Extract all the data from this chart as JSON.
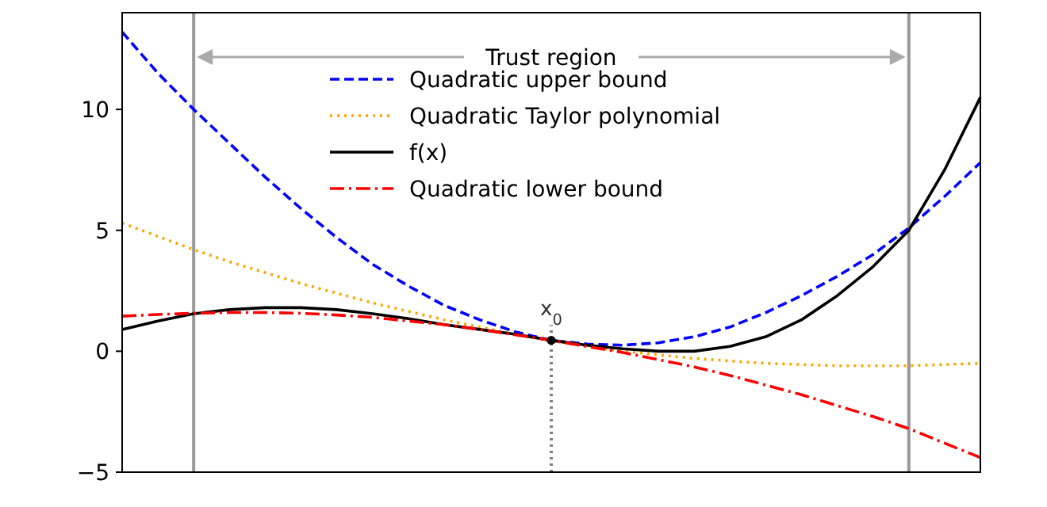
{
  "chart_data": {
    "type": "line",
    "categories": [
      null,
      null,
      null,
      null,
      null,
      null,
      null,
      null,
      null,
      null,
      null,
      null,
      null,
      null,
      null,
      null,
      null,
      null,
      null,
      null,
      null,
      null,
      null,
      null,
      null
    ],
    "ylim": [
      -5,
      14
    ],
    "yticks": [
      -5,
      0,
      5,
      10
    ],
    "legend": "top",
    "tick_labels": "y",
    "series": [
      {
        "name": "Quadratic upper bound",
        "color": "#0000ff",
        "line_style": "dashed",
        "values": [
          13.2,
          11.5,
          10.0,
          8.6,
          7.2,
          5.9,
          4.7,
          3.6,
          2.7,
          1.9,
          1.3,
          0.8,
          0.45,
          0.3,
          0.25,
          0.35,
          0.6,
          1.0,
          1.6,
          2.3,
          3.1,
          4.0,
          5.1,
          6.4,
          7.8
        ]
      },
      {
        "name": "Quadratic Taylor polynomial",
        "color": "#ffa500",
        "line_style": "dotted",
        "values": [
          5.3,
          4.75,
          4.2,
          3.7,
          3.25,
          2.8,
          2.4,
          2.0,
          1.65,
          1.3,
          1.0,
          0.7,
          0.45,
          0.2,
          0.0,
          -0.15,
          -0.3,
          -0.4,
          -0.5,
          -0.55,
          -0.6,
          -0.6,
          -0.6,
          -0.55,
          -0.5
        ]
      },
      {
        "name": "f(x)",
        "color": "#000000",
        "line_style": "solid",
        "values": [
          0.9,
          1.25,
          1.55,
          1.72,
          1.8,
          1.8,
          1.72,
          1.55,
          1.35,
          1.1,
          0.9,
          0.7,
          0.45,
          0.25,
          0.1,
          0.0,
          0.0,
          0.2,
          0.6,
          1.3,
          2.3,
          3.5,
          5.0,
          7.5,
          10.5
        ]
      },
      {
        "name": "Quadratic lower bound",
        "color": "#ff0000",
        "line_style": "dashdot",
        "values": [
          1.45,
          1.52,
          1.57,
          1.6,
          1.6,
          1.57,
          1.5,
          1.4,
          1.25,
          1.1,
          0.9,
          0.68,
          0.45,
          0.2,
          -0.05,
          -0.35,
          -0.65,
          -1.0,
          -1.4,
          -1.8,
          -2.25,
          -2.7,
          -3.2,
          -3.8,
          -4.4
        ]
      },
      {
        "type": "scatter",
        "color": "#000000",
        "marker": "circle",
        "values": [
          null,
          null,
          null,
          null,
          null,
          null,
          null,
          null,
          null,
          null,
          null,
          null,
          0.45,
          null,
          null,
          null,
          null,
          null,
          null,
          null,
          null,
          null,
          null,
          null,
          null
        ]
      }
    ],
    "annotations": [
      "Trust region",
      "x$_{0}$"
    ]
  }
}
